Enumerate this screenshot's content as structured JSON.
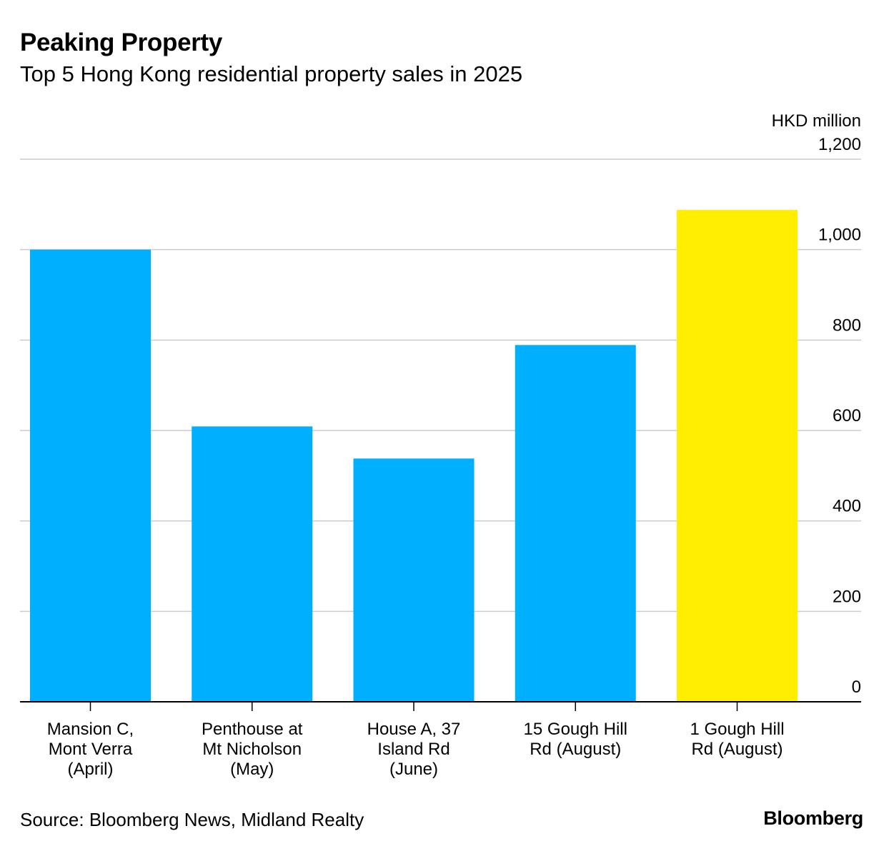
{
  "header": {
    "title": "Peaking Property",
    "subtitle": "Top 5 Hong Kong residential property sales in 2025"
  },
  "chart_data": {
    "type": "bar",
    "title": "Peaking Property",
    "subtitle": "Top 5 Hong Kong residential property sales in 2025",
    "unit_label": "HKD million",
    "categories": [
      [
        "Mansion C,",
        "Mont Verra",
        "(April)"
      ],
      [
        "Penthouse at",
        "Mt Nicholson",
        "(May)"
      ],
      [
        "House A, 37",
        "Island Rd",
        "(June)"
      ],
      [
        "15 Gough Hill",
        "Rd (August)"
      ],
      [
        "1 Gough Hill",
        "Rd (August)"
      ]
    ],
    "values": [
      1000,
      609,
      538,
      789,
      1088
    ],
    "colors": [
      "#00b0ff",
      "#00b0ff",
      "#00b0ff",
      "#00b0ff",
      "#ffee00"
    ],
    "highlight_index": 4,
    "ylim": [
      0,
      1200
    ],
    "y_ticks": [
      0,
      200,
      400,
      600,
      800,
      1000,
      1200
    ],
    "y_tick_labels": [
      "0",
      "200",
      "400",
      "600",
      "800",
      "1,000",
      "1,200"
    ],
    "y_axis_position": "right",
    "grid": true,
    "xlabel": "",
    "ylabel": "HKD million"
  },
  "footer": {
    "source": "Source: Bloomberg News, Midland Realty",
    "brand": "Bloomberg"
  }
}
